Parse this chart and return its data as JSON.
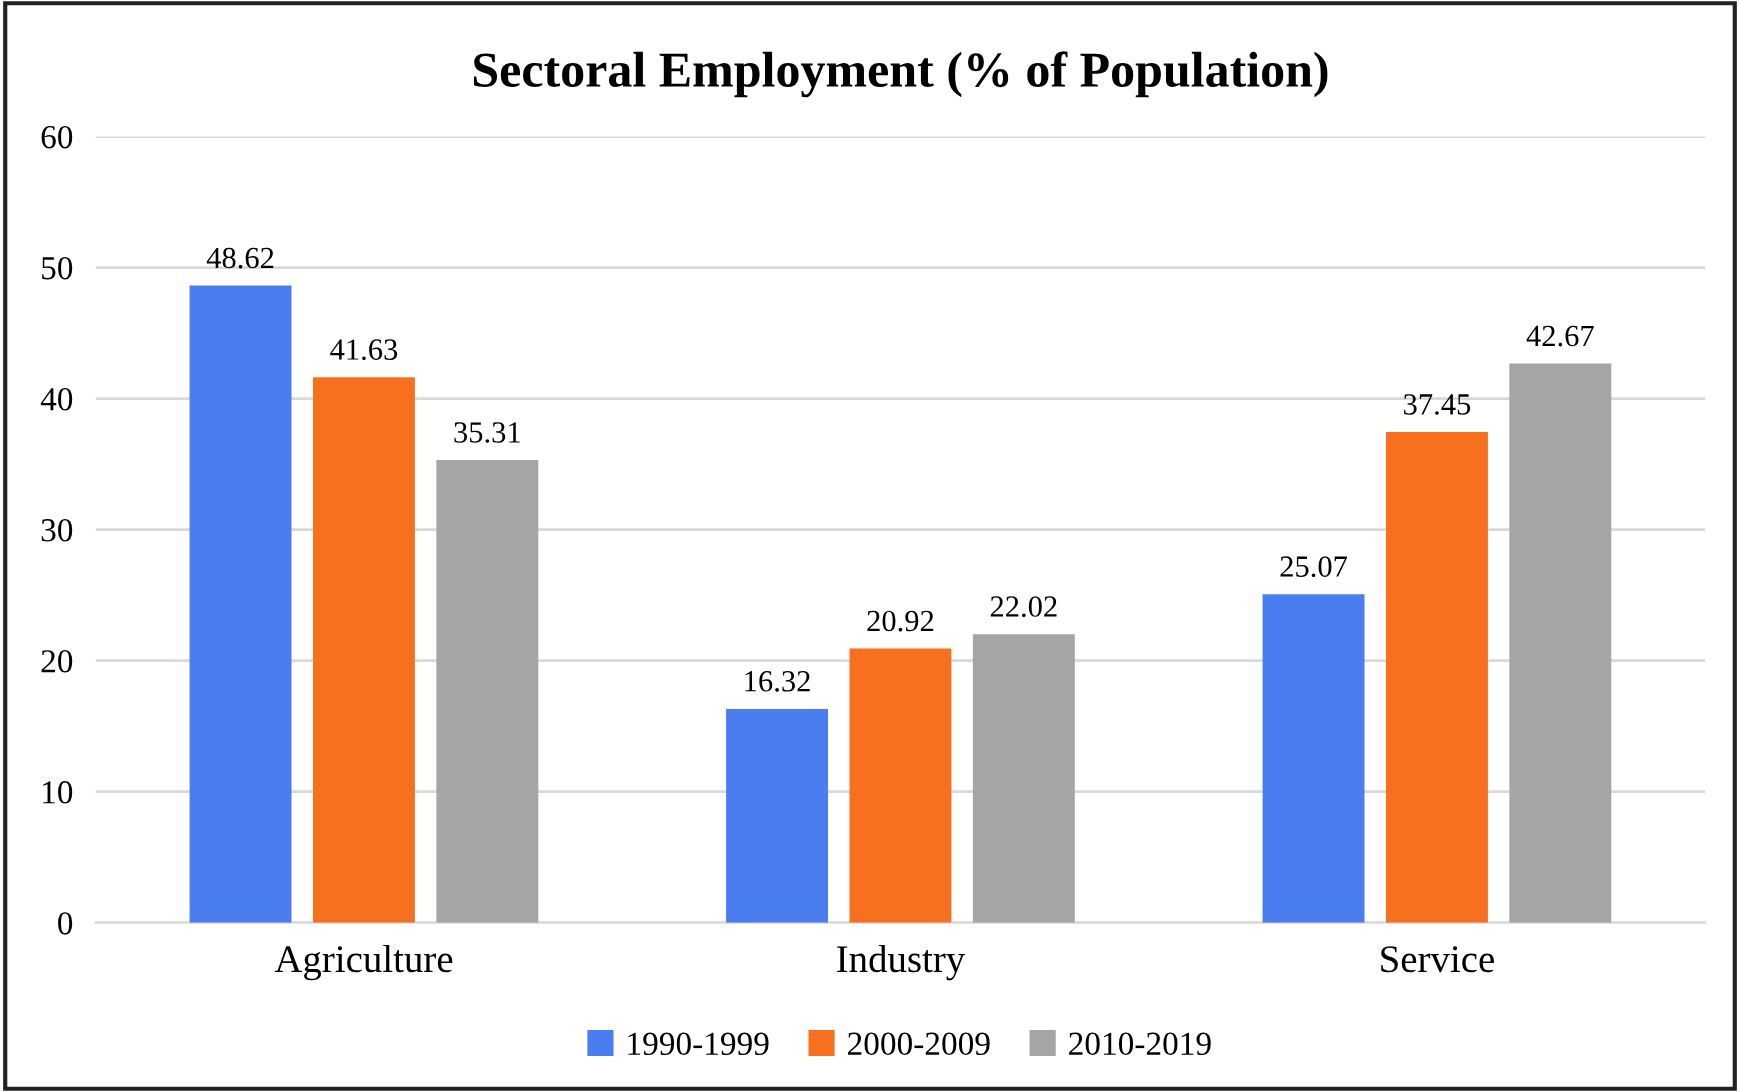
{
  "chart_data": {
    "type": "bar",
    "title": "Sectoral Employment (% of Population)",
    "categories": [
      "Agriculture",
      "Industry",
      "Service"
    ],
    "series": [
      {
        "name": "1990-1999",
        "color": "#4a7ef0",
        "values": [
          48.62,
          16.32,
          25.07
        ]
      },
      {
        "name": "2000-2009",
        "color": "#f7701f",
        "values": [
          41.63,
          20.92,
          37.45
        ]
      },
      {
        "name": "2010-2019",
        "color": "#a5a5a5",
        "values": [
          35.31,
          22.02,
          42.67
        ]
      }
    ],
    "ylim": [
      0,
      60
    ],
    "yticks": [
      0,
      10,
      20,
      30,
      40,
      50,
      60
    ],
    "grid": "y",
    "legend": "bottom",
    "data_labels": true
  }
}
